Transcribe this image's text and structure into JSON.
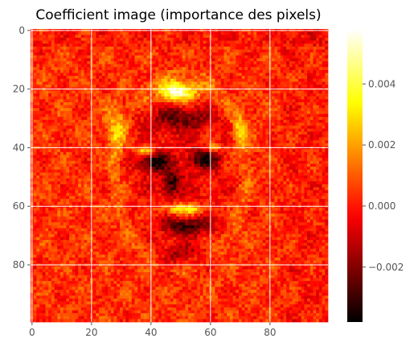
{
  "chart_data": {
    "type": "heatmap",
    "title": "Coefficient image (importance des pixels)",
    "xlabel": "",
    "ylabel": "",
    "grid": true,
    "colormap": "hot",
    "image_shape": [
      100,
      100
    ],
    "x_ticks": [
      0,
      20,
      40,
      60,
      80
    ],
    "y_ticks": [
      0,
      20,
      40,
      60,
      80
    ],
    "colorbar": {
      "range": [
        -0.0038,
        0.0058
      ],
      "ticks": [
        -0.002,
        0.0,
        0.002,
        0.004
      ],
      "tick_labels": [
        "−0.002",
        "0.000",
        "0.002",
        "0.004"
      ]
    },
    "features": [
      {
        "name": "forehead highlight",
        "cx": 49,
        "cy": 21,
        "rx": 6,
        "ry": 3,
        "value": 0.0055
      },
      {
        "name": "upper lip highlight",
        "cx": 51,
        "cy": 61,
        "rx": 7,
        "ry": 2,
        "value": 0.0035
      },
      {
        "name": "left eye highlight",
        "cx": 38,
        "cy": 41,
        "rx": 3,
        "ry": 1.5,
        "value": 0.003
      },
      {
        "name": "right eye highlight",
        "cx": 61,
        "cy": 40,
        "rx": 2.5,
        "ry": 1.5,
        "value": 0.0025
      },
      {
        "name": "left cheek contour",
        "cx": 28,
        "cy": 34,
        "rx": 3,
        "ry": 8,
        "value": 0.002
      },
      {
        "name": "right cheek contour",
        "cx": 70,
        "cy": 34,
        "rx": 2.5,
        "ry": 7,
        "value": 0.0018
      },
      {
        "name": "left eye dark",
        "cx": 41,
        "cy": 45,
        "rx": 5,
        "ry": 3,
        "value": -0.0035
      },
      {
        "name": "right eye dark",
        "cx": 58,
        "cy": 44,
        "rx": 5,
        "ry": 3,
        "value": -0.0032
      },
      {
        "name": "nose dark",
        "cx": 47,
        "cy": 52,
        "rx": 3,
        "ry": 4,
        "value": -0.003
      },
      {
        "name": "mouth dark",
        "cx": 52,
        "cy": 67,
        "rx": 8,
        "ry": 3,
        "value": -0.0028
      },
      {
        "name": "forehead dark band",
        "cx": 50,
        "cy": 30,
        "rx": 11,
        "ry": 4,
        "value": -0.0022
      },
      {
        "name": "chin dark",
        "cx": 50,
        "cy": 77,
        "rx": 9,
        "ry": 4,
        "value": -0.0018
      }
    ]
  }
}
